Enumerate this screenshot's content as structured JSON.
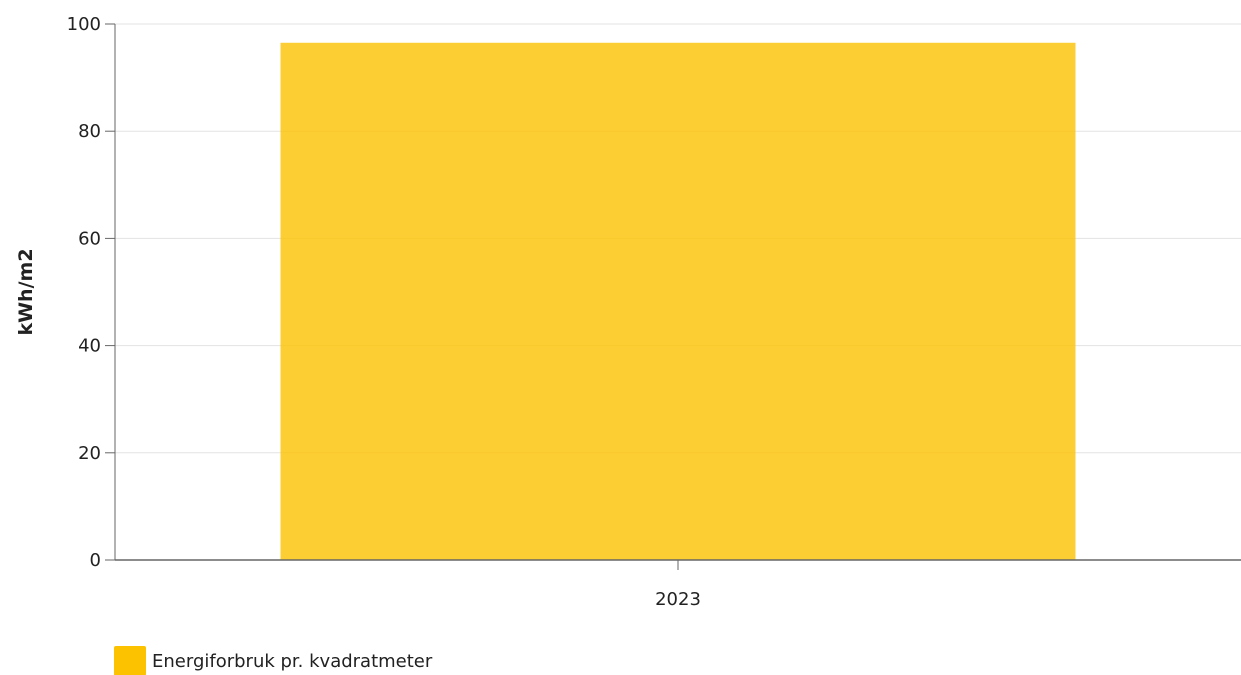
{
  "chart_data": {
    "type": "bar",
    "categories": [
      "2023"
    ],
    "series": [
      {
        "name": "Energiforbruk pr. kvadratmeter",
        "values": [
          96.5
        ],
        "color": "#fcc200"
      }
    ],
    "title": "",
    "xlabel": "",
    "ylabel": "kWh/m2",
    "ylim": [
      0,
      100
    ],
    "yticks": [
      "0",
      "20",
      "40",
      "60",
      "80",
      "100"
    ],
    "grid": true,
    "legend_position": "bottom-left"
  }
}
